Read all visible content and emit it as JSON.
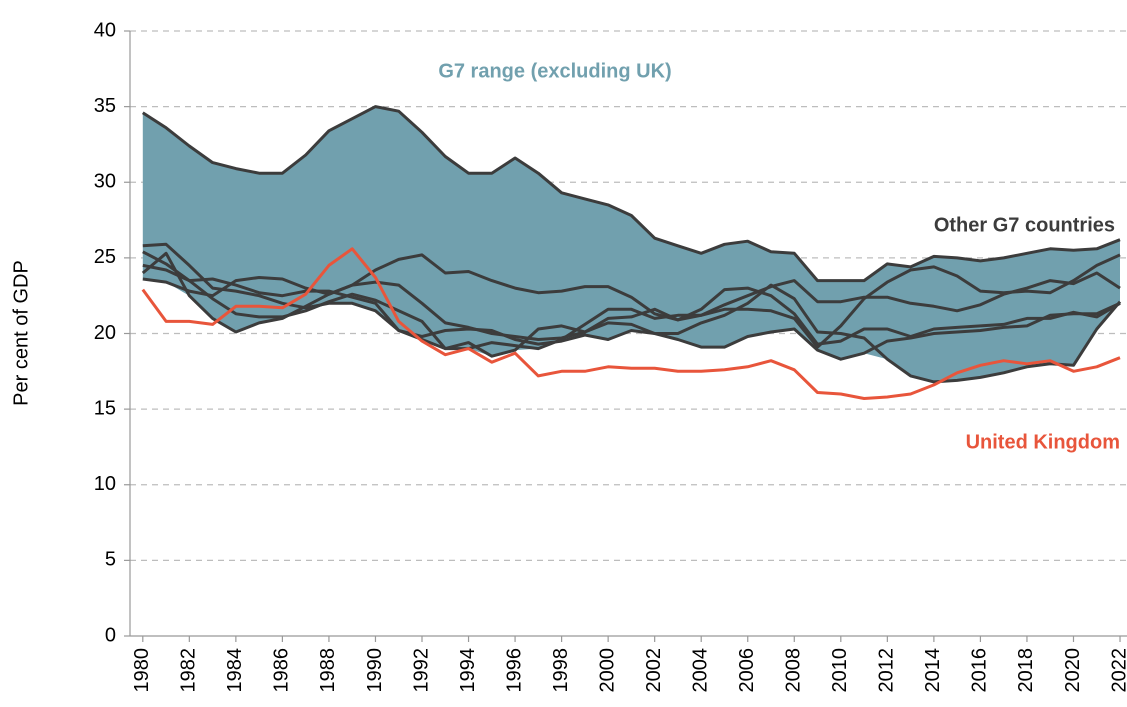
{
  "chart_data": {
    "type": "line",
    "y_label": "Per cent of GDP",
    "x": [
      1980,
      1981,
      1982,
      1983,
      1984,
      1985,
      1986,
      1987,
      1988,
      1989,
      1990,
      1991,
      1992,
      1993,
      1994,
      1995,
      1996,
      1997,
      1998,
      1999,
      2000,
      2001,
      2002,
      2003,
      2004,
      2005,
      2006,
      2007,
      2008,
      2009,
      2010,
      2011,
      2012,
      2013,
      2014,
      2015,
      2016,
      2017,
      2018,
      2019,
      2020,
      2021,
      2022
    ],
    "xlim": [
      1979.45,
      2022.3
    ],
    "xticks": [
      1980,
      1982,
      1984,
      1986,
      1988,
      1990,
      1992,
      1994,
      1996,
      1998,
      2000,
      2002,
      2004,
      2006,
      2008,
      2010,
      2012,
      2014,
      2016,
      2018,
      2020,
      2022
    ],
    "ylim": [
      0,
      40
    ],
    "yticks": [
      0,
      5,
      10,
      15,
      20,
      25,
      30,
      35,
      40
    ],
    "grid": true,
    "range": {
      "label": "G7 range (excluding UK)",
      "color": "#71a0ae"
    },
    "series": [
      {
        "name": "United Kingdom",
        "color": "#e8553b",
        "values": [
          22.9,
          20.8,
          20.8,
          20.6,
          21.8,
          21.8,
          21.7,
          22.6,
          24.5,
          25.6,
          23.7,
          20.8,
          19.5,
          18.6,
          19.0,
          18.1,
          18.7,
          17.2,
          17.5,
          17.5,
          17.8,
          17.7,
          17.7,
          17.5,
          17.5,
          17.6,
          17.8,
          18.2,
          17.6,
          16.1,
          16.0,
          15.7,
          15.8,
          16.0,
          16.6,
          17.4,
          17.9,
          18.2,
          18.0,
          18.2,
          17.5,
          17.8,
          18.4
        ]
      },
      {
        "name": "Other G7 countries",
        "color": "#3c3c3c",
        "lines": [
          [
            34.6,
            33.6,
            32.4,
            31.3,
            30.9,
            30.6,
            30.6,
            31.8,
            33.4,
            34.2,
            35.0,
            34.7,
            33.3,
            31.7,
            30.6,
            30.6,
            31.6,
            30.6,
            29.3,
            28.9,
            28.5,
            27.8,
            26.3,
            25.8,
            25.3,
            25.9,
            26.1,
            25.4,
            25.3,
            23.5,
            23.5,
            23.5,
            24.6,
            24.4,
            25.1,
            25.0,
            24.8,
            25.0,
            25.3,
            25.6,
            25.5,
            25.6,
            26.2
          ],
          [
            25.8,
            25.9,
            24.5,
            23.0,
            22.8,
            22.5,
            22.0,
            21.7,
            22.0,
            22.0,
            21.5,
            20.2,
            19.8,
            20.2,
            20.3,
            20.2,
            19.6,
            19.3,
            19.5,
            19.9,
            19.6,
            20.2,
            20.0,
            19.6,
            19.1,
            19.1,
            19.8,
            20.1,
            20.3,
            18.9,
            18.3,
            18.7,
            19.5,
            19.7,
            20.0,
            20.1,
            20.2,
            20.4,
            20.5,
            21.2,
            21.3,
            21.3,
            22.0
          ],
          [
            24.0,
            25.3,
            22.5,
            21.0,
            20.1,
            20.7,
            21.0,
            21.8,
            22.6,
            23.2,
            24.2,
            24.9,
            25.2,
            24.0,
            24.1,
            23.5,
            23.0,
            22.7,
            22.8,
            23.1,
            23.1,
            22.4,
            21.3,
            20.9,
            21.2,
            21.9,
            22.5,
            23.1,
            23.5,
            22.1,
            22.1,
            22.4,
            22.4,
            22.0,
            21.8,
            21.5,
            21.9,
            22.6,
            23.0,
            23.5,
            23.3,
            24.0,
            23.0
          ],
          [
            25.4,
            24.6,
            23.5,
            22.3,
            21.3,
            21.1,
            21.1,
            21.5,
            22.1,
            22.6,
            22.2,
            21.5,
            20.8,
            19.0,
            19.4,
            18.5,
            18.9,
            20.3,
            20.5,
            20.1,
            20.7,
            20.6,
            20.0,
            20.0,
            20.7,
            21.2,
            22.0,
            23.2,
            22.3,
            20.1,
            20.0,
            19.7,
            18.3,
            17.2,
            16.8,
            16.9,
            17.1,
            17.4,
            17.8,
            18.0,
            17.9,
            20.3,
            22.1
          ],
          [
            23.6,
            23.4,
            22.8,
            22.5,
            23.5,
            23.7,
            23.6,
            23.0,
            22.6,
            23.2,
            23.4,
            23.2,
            22.0,
            20.7,
            20.4,
            20.0,
            19.8,
            19.6,
            19.7,
            20.1,
            21.0,
            21.1,
            21.6,
            20.9,
            21.6,
            22.9,
            23.0,
            22.5,
            21.3,
            19.3,
            19.5,
            20.3,
            20.3,
            19.8,
            20.3,
            20.4,
            20.5,
            20.6,
            21.0,
            21.0,
            21.4,
            21.1,
            22.0
          ],
          [
            24.5,
            24.2,
            23.5,
            23.6,
            23.2,
            22.7,
            22.5,
            22.8,
            22.8,
            22.4,
            22.0,
            20.2,
            19.6,
            19.0,
            19.0,
            19.4,
            19.2,
            19.0,
            19.6,
            20.6,
            21.6,
            21.6,
            21.0,
            21.2,
            21.2,
            21.6,
            21.6,
            21.5,
            21.0,
            19.1,
            20.5,
            22.3,
            23.4,
            24.2,
            24.4,
            23.8,
            22.8,
            22.7,
            22.8,
            22.7,
            23.5,
            24.5,
            25.2
          ]
        ]
      }
    ]
  }
}
